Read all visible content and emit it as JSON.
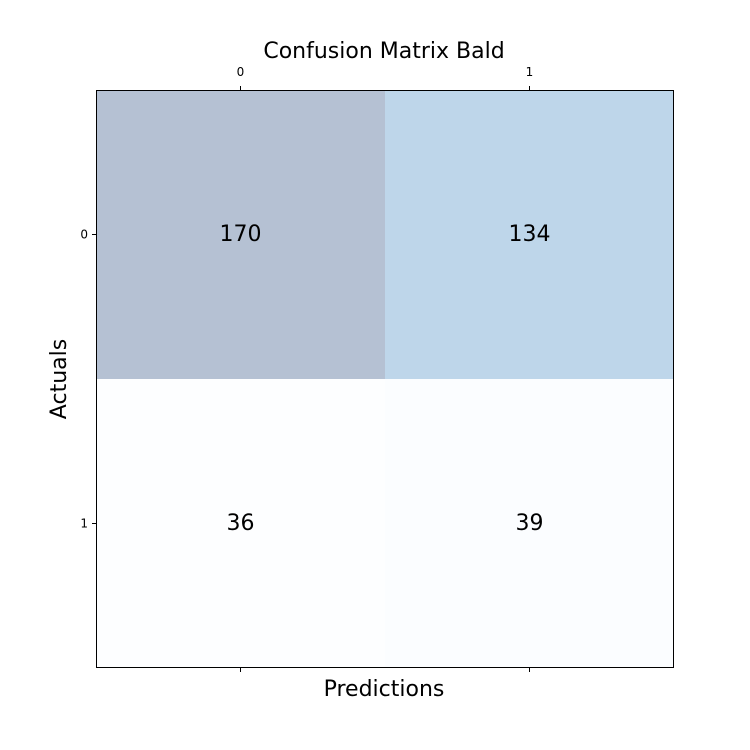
{
  "chart_data": {
    "type": "heatmap",
    "title": "Confusion Matrix Bald",
    "xlabel": "Predictions",
    "ylabel": "Actuals",
    "x_categories": [
      "0",
      "1"
    ],
    "y_categories": [
      "0",
      "1"
    ],
    "values": [
      [
        170,
        134
      ],
      [
        36,
        39
      ]
    ],
    "colormap": "Blues",
    "grid": false
  }
}
